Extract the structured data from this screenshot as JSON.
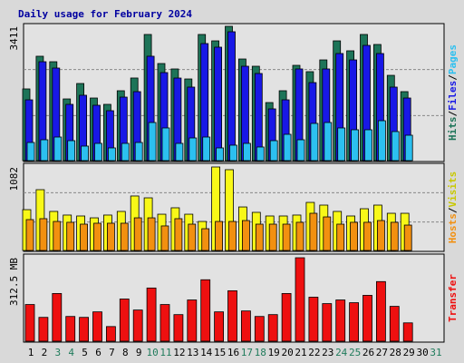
{
  "chart_data": [
    {
      "type": "bar",
      "title": "Daily usage for February 2024",
      "ylim": [
        0,
        3411
      ],
      "yticks": [
        3411
      ],
      "grid": true,
      "legend_separator": "/",
      "series": [
        {
          "name": "Hits",
          "color": "#1d7458",
          "values": [
            1821,
            2651,
            2512,
            1567,
            1959,
            1590,
            1429,
            1775,
            2098,
            3204,
            2466,
            2328,
            2074,
            3204,
            3042,
            3411,
            2581,
            2397,
            1475,
            1775,
            2420,
            2259,
            2558,
            3042,
            2789,
            3204,
            2950,
            2166,
            1752,
            null,
            null
          ]
        },
        {
          "name": "Files",
          "color": "#1818e6",
          "values": [
            1544,
            2512,
            2351,
            1429,
            1660,
            1406,
            1268,
            1613,
            1752,
            2651,
            2236,
            2097,
            1867,
            2973,
            2881,
            3273,
            2397,
            2213,
            1314,
            1544,
            2328,
            1982,
            2328,
            2720,
            2558,
            2927,
            2720,
            1867,
            1590,
            null,
            null
          ]
        },
        {
          "name": "Pages",
          "color": "#2cc0f0",
          "values": [
            461,
            530,
            599,
            507,
            369,
            438,
            323,
            438,
            461,
            968,
            830,
            438,
            576,
            599,
            323,
            392,
            438,
            346,
            507,
            668,
            530,
            945,
            968,
            830,
            784,
            784,
            1014,
            738,
            645,
            null,
            null
          ]
        }
      ]
    },
    {
      "type": "bar",
      "ylim": [
        0,
        1082
      ],
      "yticks": [
        1082
      ],
      "grid": true,
      "legend_separator": "/",
      "series": [
        {
          "name": "Hosts",
          "color": "#f29010",
          "values": [
            400,
            412,
            376,
            365,
            341,
            353,
            353,
            353,
            423,
            423,
            318,
            412,
            341,
            282,
            376,
            376,
            388,
            341,
            341,
            341,
            365,
            482,
            435,
            341,
            365,
            365,
            388,
            365,
            329,
            null,
            null
          ]
        },
        {
          "name": "Visits",
          "color": "#f8f818",
          "values": [
            529,
            788,
            506,
            459,
            447,
            423,
            459,
            506,
            706,
            682,
            470,
            553,
            470,
            376,
            1082,
            1047,
            564,
            494,
            447,
            447,
            459,
            623,
            588,
            506,
            447,
            541,
            588,
            482,
            482,
            null,
            null
          ]
        }
      ]
    },
    {
      "type": "bar",
      "ylim": [
        0,
        312.5
      ],
      "yticks": [
        {
          "value": 312.5,
          "label": "312.5 MB"
        }
      ],
      "grid": false,
      "categories": [
        "1",
        "2",
        "3",
        "4",
        "5",
        "6",
        "7",
        "8",
        "9",
        "10",
        "11",
        "12",
        "13",
        "14",
        "15",
        "16",
        "17",
        "18",
        "19",
        "20",
        "21",
        "22",
        "23",
        "24",
        "25",
        "26",
        "27",
        "28",
        "29",
        "30",
        "31"
      ],
      "category_colors": [
        "#000",
        "#000",
        "#207c5c",
        "#207c5c",
        "#000",
        "#000",
        "#000",
        "#000",
        "#000",
        "#207c5c",
        "#207c5c",
        "#000",
        "#000",
        "#000",
        "#000",
        "#000",
        "#207c5c",
        "#207c5c",
        "#000",
        "#000",
        "#000",
        "#000",
        "#000",
        "#207c5c",
        "#207c5c",
        "#000",
        "#000",
        "#000",
        "#000",
        "#000",
        "#207c5c"
      ],
      "series": [
        {
          "name": "Transfer",
          "color": "#ee1010",
          "values": [
            137.4,
            89.3,
            178.6,
            92.7,
            89.3,
            109.9,
            54.9,
            158,
            116.8,
            199.2,
            137.4,
            99.6,
            154.5,
            230.1,
            109.9,
            188.9,
            113.3,
            92.7,
            99.6,
            178.6,
            312.5,
            164.8,
            140.8,
            154.5,
            144.2,
            171.7,
            223.2,
            130.5,
            68.7,
            null,
            null
          ]
        }
      ]
    }
  ]
}
